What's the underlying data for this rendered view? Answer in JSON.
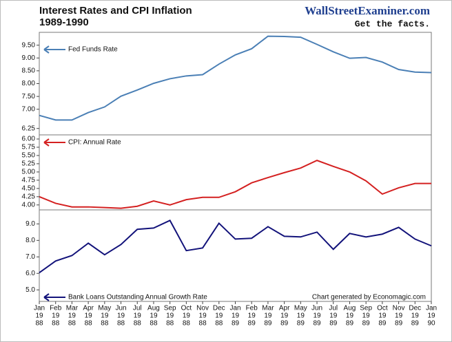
{
  "chart_data": {
    "type": "line",
    "title": "Interest Rates and CPI Inflation",
    "subtitle": "1989-1990",
    "brand": "WallStreetExaminer.com",
    "tagline": "Get the facts.",
    "credit": "Chart generated by Economagic.com",
    "categories": [
      [
        "Jan",
        "19",
        "88"
      ],
      [
        "Feb",
        "19",
        "88"
      ],
      [
        "Mar",
        "19",
        "88"
      ],
      [
        "Apr",
        "19",
        "88"
      ],
      [
        "May",
        "19",
        "88"
      ],
      [
        "Jun",
        "19",
        "88"
      ],
      [
        "Jul",
        "19",
        "88"
      ],
      [
        "Aug",
        "19",
        "88"
      ],
      [
        "Sep",
        "19",
        "88"
      ],
      [
        "Oct",
        "19",
        "88"
      ],
      [
        "Nov",
        "19",
        "88"
      ],
      [
        "Dec",
        "19",
        "88"
      ],
      [
        "Jan",
        "19",
        "89"
      ],
      [
        "Feb",
        "19",
        "89"
      ],
      [
        "Mar",
        "19",
        "89"
      ],
      [
        "Apr",
        "19",
        "89"
      ],
      [
        "May",
        "19",
        "89"
      ],
      [
        "Jun",
        "19",
        "89"
      ],
      [
        "Jul",
        "19",
        "89"
      ],
      [
        "Aug",
        "19",
        "89"
      ],
      [
        "Sep",
        "19",
        "89"
      ],
      [
        "Oct",
        "19",
        "89"
      ],
      [
        "Nov",
        "19",
        "89"
      ],
      [
        "Dec",
        "19",
        "89"
      ],
      [
        "Jan",
        "19",
        "90"
      ]
    ],
    "series": [
      {
        "name": "Fed Funds Rate",
        "color": "#4a7fb5",
        "values": [
          6.76,
          6.58,
          6.58,
          6.87,
          7.09,
          7.51,
          7.75,
          8.01,
          8.19,
          8.3,
          8.35,
          8.76,
          9.12,
          9.36,
          9.85,
          9.84,
          9.81,
          9.53,
          9.24,
          8.99,
          9.02,
          8.84,
          8.55,
          8.45,
          8.43
        ],
        "ylim": [
          6.0,
          10.0
        ],
        "yticks": [
          {
            "value": 9.5,
            "label": "9.50"
          },
          {
            "value": 9,
            "label": "9.00"
          },
          {
            "value": 8.5,
            "label": "8.50"
          },
          {
            "value": 8,
            "label": "8.00"
          },
          {
            "value": 7.5,
            "label": "7.50"
          },
          {
            "value": 7,
            "label": "7.00"
          },
          6.25
        ]
      },
      {
        "name": "CPI: Annual Rate",
        "color": "#d42020",
        "values": [
          4.25,
          4.05,
          3.94,
          3.94,
          3.92,
          3.9,
          3.96,
          4.12,
          4.0,
          4.16,
          4.23,
          4.23,
          4.4,
          4.67,
          4.83,
          4.98,
          5.12,
          5.35,
          5.17,
          5.0,
          4.73,
          4.33,
          4.52,
          4.65,
          4.65
        ],
        "ylim": [
          3.85,
          6.125
        ],
        "yticks": [
          {
            "value": 6,
            "label": "6.00"
          },
          5.75,
          {
            "value": 5.5,
            "label": "5.50"
          },
          5.25,
          {
            "value": 5,
            "label": "5.00"
          },
          4.75,
          {
            "value": 4.5,
            "label": "4.50"
          },
          4.25,
          {
            "value": 4,
            "label": "4.00"
          }
        ]
      },
      {
        "name": "Bank Loans Outstanding Annual Growth Rate",
        "color": "#12127a",
        "values": [
          6.04,
          6.75,
          7.08,
          7.83,
          7.13,
          7.75,
          8.67,
          8.75,
          9.21,
          7.38,
          7.54,
          9.04,
          8.08,
          8.13,
          8.83,
          8.25,
          8.21,
          8.5,
          7.46,
          8.42,
          8.21,
          8.38,
          8.79,
          8.08,
          7.67
        ],
        "ylim": [
          4.3,
          9.85
        ],
        "yticks": [
          {
            "value": 9,
            "label": "9.0"
          },
          {
            "value": 8,
            "label": "8.0"
          },
          {
            "value": 7,
            "label": "7.0"
          },
          {
            "value": 6,
            "label": "6.0"
          },
          {
            "value": 5,
            "label": "5.0"
          }
        ]
      }
    ]
  }
}
